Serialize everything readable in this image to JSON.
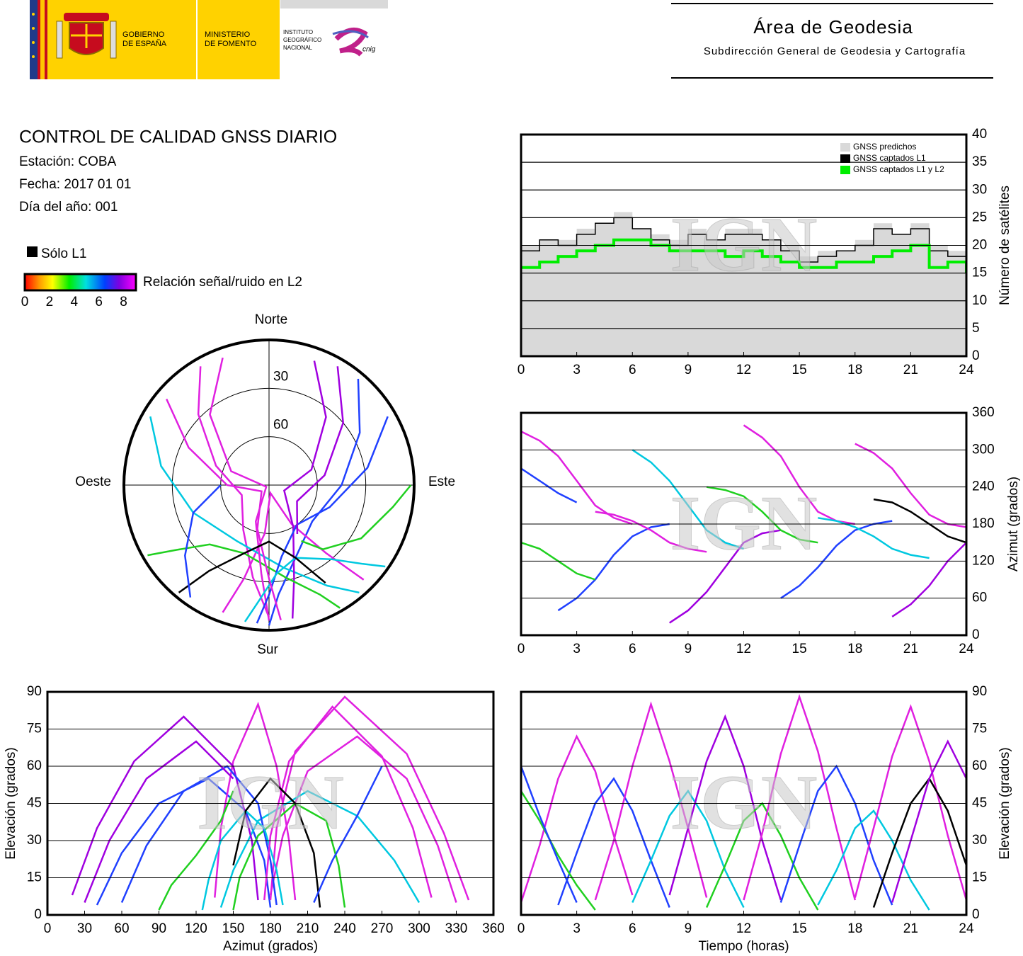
{
  "header": {
    "gov": [
      "GOBIERNO",
      "DE ESPAÑA"
    ],
    "ministry": [
      "MINISTERIO",
      "DE FOMENTO"
    ],
    "institute": [
      "INSTITUTO",
      "GEOGRÁFICO",
      "NACIONAL"
    ],
    "cnig": "cnig",
    "area": "Área de Geodesia",
    "subarea": "Subdirección General de Geodesia y Cartografía"
  },
  "report": {
    "title": "CONTROL DE CALIDAD GNSS DIARIO",
    "station": "Estación: COBA",
    "date": "Fecha: 2017 01 01",
    "doy": "Día del año: 001"
  },
  "legend": {
    "l1_only": "Sólo L1",
    "snr_label": "Relación señal/ruido en L2",
    "snr_ticks": [
      0,
      2,
      4,
      6,
      8
    ]
  },
  "watermark": "IGN",
  "chart_data": [
    {
      "type": "polar",
      "labels": {
        "north": "Norte",
        "south": "Sur",
        "east": "Este",
        "west": "Oeste"
      },
      "rticks": [
        30,
        60
      ],
      "series": [
        {
          "color": "#e020e0",
          "time": [
            0,
            1,
            2,
            3,
            4,
            5,
            6
          ],
          "azimuth": [
            330,
            315,
            290,
            250,
            210,
            190,
            180
          ],
          "elevation": [
            5,
            28,
            55,
            72,
            58,
            32,
            8
          ]
        },
        {
          "color": "#2040ff",
          "time": [
            2,
            3,
            4,
            5,
            6,
            7,
            8
          ],
          "azimuth": [
            40,
            60,
            90,
            130,
            160,
            175,
            180
          ],
          "elevation": [
            4,
            25,
            45,
            55,
            42,
            22,
            3
          ]
        },
        {
          "color": "#e020e0",
          "time": [
            4,
            5,
            6,
            7,
            8,
            9,
            10
          ],
          "azimuth": [
            200,
            195,
            185,
            170,
            150,
            140,
            135
          ],
          "elevation": [
            6,
            30,
            60,
            85,
            62,
            35,
            7
          ]
        },
        {
          "color": "#00c8e0",
          "time": [
            6,
            7,
            8,
            9,
            10,
            11,
            12
          ],
          "azimuth": [
            300,
            280,
            250,
            210,
            170,
            150,
            140
          ],
          "elevation": [
            5,
            22,
            40,
            50,
            38,
            18,
            3
          ]
        },
        {
          "color": "#a000e0",
          "time": [
            8,
            9,
            10,
            11,
            12,
            13,
            14
          ],
          "azimuth": [
            20,
            40,
            70,
            110,
            150,
            165,
            170
          ],
          "elevation": [
            8,
            35,
            62,
            80,
            60,
            30,
            6
          ]
        },
        {
          "color": "#20d020",
          "time": [
            10,
            11,
            12,
            13,
            14,
            15,
            16
          ],
          "azimuth": [
            240,
            235,
            225,
            200,
            170,
            155,
            150
          ],
          "elevation": [
            3,
            20,
            38,
            45,
            32,
            15,
            2
          ]
        },
        {
          "color": "#e020e0",
          "time": [
            12,
            13,
            14,
            15,
            16,
            17,
            18
          ],
          "azimuth": [
            340,
            320,
            290,
            240,
            200,
            185,
            180
          ],
          "elevation": [
            6,
            33,
            65,
            88,
            66,
            35,
            6
          ]
        },
        {
          "color": "#2040ff",
          "time": [
            14,
            15,
            16,
            17,
            18,
            19,
            20
          ],
          "azimuth": [
            60,
            80,
            110,
            145,
            170,
            180,
            185
          ],
          "elevation": [
            5,
            28,
            50,
            60,
            45,
            22,
            4
          ]
        },
        {
          "color": "#00c8e0",
          "time": [
            16,
            17,
            18,
            19,
            20,
            21,
            22
          ],
          "azimuth": [
            190,
            185,
            175,
            160,
            140,
            130,
            125
          ],
          "elevation": [
            4,
            18,
            35,
            42,
            30,
            14,
            2
          ]
        },
        {
          "color": "#e020e0",
          "time": [
            18,
            19,
            20,
            21,
            22,
            23,
            24
          ],
          "azimuth": [
            310,
            295,
            270,
            230,
            195,
            180,
            175
          ],
          "elevation": [
            7,
            35,
            64,
            84,
            62,
            32,
            6
          ]
        },
        {
          "color": "#000000",
          "time": [
            19,
            20,
            21,
            22,
            23,
            24
          ],
          "azimuth": [
            220,
            215,
            200,
            180,
            160,
            150
          ],
          "elevation": [
            3,
            25,
            45,
            55,
            42,
            20
          ]
        },
        {
          "color": "#a000e0",
          "time": [
            20,
            21,
            22,
            23,
            24
          ],
          "azimuth": [
            30,
            50,
            80,
            120,
            150
          ],
          "elevation": [
            5,
            30,
            55,
            70,
            55
          ]
        },
        {
          "color": "#20d020",
          "time": [
            0,
            1,
            2,
            3,
            4
          ],
          "azimuth": [
            150,
            140,
            120,
            100,
            90
          ],
          "elevation": [
            50,
            38,
            24,
            12,
            2
          ]
        },
        {
          "color": "#2040ff",
          "time": [
            0,
            1,
            2,
            3
          ],
          "azimuth": [
            270,
            250,
            230,
            215
          ],
          "elevation": [
            60,
            40,
            22,
            5
          ]
        }
      ]
    },
    {
      "type": "step",
      "ylabel": "Número de satélites",
      "x": [
        0,
        1,
        2,
        3,
        4,
        5,
        6,
        7,
        8,
        9,
        10,
        11,
        12,
        13,
        14,
        15,
        16,
        17,
        18,
        19,
        20,
        21,
        22,
        23,
        24
      ],
      "xlim": [
        0,
        24
      ],
      "xticks": [
        0,
        3,
        6,
        9,
        12,
        15,
        18,
        21,
        24
      ],
      "ylim": [
        0,
        40
      ],
      "yticks": [
        0,
        5,
        10,
        15,
        20,
        25,
        30,
        35,
        40
      ],
      "grid": true,
      "legend": "upper right",
      "series": [
        {
          "name": "GNSS predichos",
          "color": "#d9d9d9",
          "values": [
            20,
            21,
            21,
            23,
            24,
            26,
            23,
            22,
            21,
            23,
            21,
            23,
            23,
            21,
            20,
            18,
            19,
            19,
            21,
            24,
            22,
            24,
            20,
            19,
            17
          ]
        },
        {
          "name": "GNSS captados L1",
          "color": "#000000",
          "values": [
            19,
            21,
            20,
            22,
            24,
            25,
            23,
            21,
            20,
            22,
            21,
            22,
            22,
            21,
            19,
            17,
            18,
            19,
            20,
            23,
            22,
            23,
            19,
            18,
            16
          ]
        },
        {
          "name": "GNSS captados L1 y L2",
          "color": "#00ee00",
          "values": [
            16,
            17,
            18,
            19,
            20,
            21,
            21,
            20,
            19,
            19,
            19,
            18,
            19,
            18,
            17,
            16,
            16,
            17,
            17,
            18,
            19,
            20,
            16,
            17,
            15
          ]
        }
      ]
    },
    {
      "type": "azimuth_vs_time",
      "ylabel": "Azimut (grados)",
      "xlim": [
        0,
        24
      ],
      "xticks": [
        0,
        3,
        6,
        9,
        12,
        15,
        18,
        21,
        24
      ],
      "ylim": [
        0,
        360
      ],
      "yticks": [
        0,
        60,
        120,
        180,
        240,
        300,
        360
      ],
      "grid": true
    },
    {
      "type": "elevation_vs_azimuth",
      "xlabel": "Azimut (grados)",
      "ylabel": "Elevación (grados)",
      "xlim": [
        0,
        360
      ],
      "xticks": [
        0,
        30,
        60,
        90,
        120,
        150,
        180,
        210,
        240,
        270,
        300,
        330,
        360
      ],
      "ylim": [
        0,
        90
      ],
      "yticks": [
        0,
        15,
        30,
        45,
        60,
        75,
        90
      ],
      "grid": true
    },
    {
      "type": "elevation_vs_time",
      "xlabel": "Tiempo (horas)",
      "ylabel": "Elevación (grados)",
      "xlim": [
        0,
        24
      ],
      "xticks": [
        0,
        3,
        6,
        9,
        12,
        15,
        18,
        21,
        24
      ],
      "ylim": [
        0,
        90
      ],
      "yticks": [
        0,
        15,
        30,
        45,
        60,
        75,
        90
      ],
      "grid": true
    }
  ]
}
